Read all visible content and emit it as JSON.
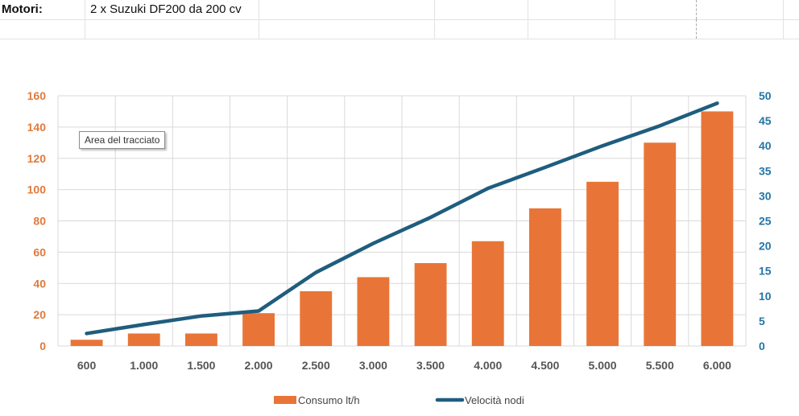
{
  "sheet": {
    "label": "Motori:",
    "value": "2 x Suzuki DF200 da 200 cv"
  },
  "tooltip": {
    "text": "Area del tracciato"
  },
  "colors": {
    "bar": "#E87537",
    "line": "#1F5D7E",
    "left_axis_text": "#E07A3C",
    "right_axis_text": "#2475A6",
    "gridline": "#d9d9d9",
    "category_text": "#555555"
  },
  "chart_data": {
    "type": "bar",
    "categories": [
      "600",
      "1.000",
      "1.500",
      "2.000",
      "2.500",
      "3.000",
      "3.500",
      "4.000",
      "4.500",
      "5.000",
      "5.500",
      "6.000"
    ],
    "series": [
      {
        "name": "Consumo lt/h",
        "type": "bar",
        "axis": "left",
        "values": [
          4,
          8,
          8,
          21,
          35,
          44,
          53,
          67,
          88,
          105,
          130,
          150
        ]
      },
      {
        "name": "Velocità nodi",
        "type": "line",
        "axis": "right",
        "values": [
          2.5,
          4.3,
          6,
          7,
          14.7,
          20.5,
          25.7,
          31.5,
          35.7,
          40,
          44,
          48.5
        ]
      }
    ],
    "y_left": {
      "min": 0,
      "max": 160,
      "step": 20,
      "ticks": [
        "0",
        "20",
        "40",
        "60",
        "80",
        "100",
        "120",
        "140",
        "160"
      ]
    },
    "y_right": {
      "min": 0,
      "max": 50,
      "step": 5,
      "ticks": [
        "0",
        "5",
        "10",
        "15",
        "20",
        "25",
        "30",
        "35",
        "40",
        "45",
        "50"
      ]
    },
    "grid": true,
    "legend_position": "bottom"
  }
}
